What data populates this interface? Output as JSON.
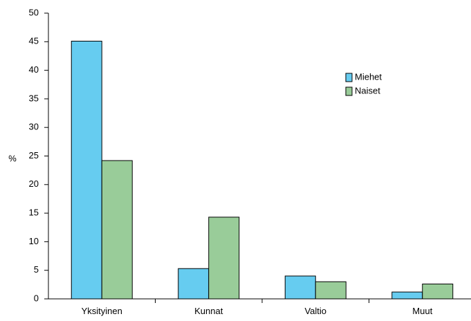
{
  "chart_data": {
    "type": "bar",
    "ylabel": "%",
    "ylim": [
      0,
      50
    ],
    "yticks": [
      0,
      5,
      10,
      15,
      20,
      25,
      30,
      35,
      40,
      45,
      50
    ],
    "categories": [
      "Yksityinen",
      "Kunnat",
      "Valtio",
      "Muut"
    ],
    "series": [
      {
        "name": "Miehet",
        "color": "#66ccf0",
        "values": [
          45.1,
          5.3,
          4.0,
          1.2
        ]
      },
      {
        "name": "Naiset",
        "color": "#99cc99",
        "values": [
          24.2,
          14.3,
          3.0,
          2.6
        ]
      }
    ],
    "grid": false,
    "legend": "upper-right inside plot"
  }
}
